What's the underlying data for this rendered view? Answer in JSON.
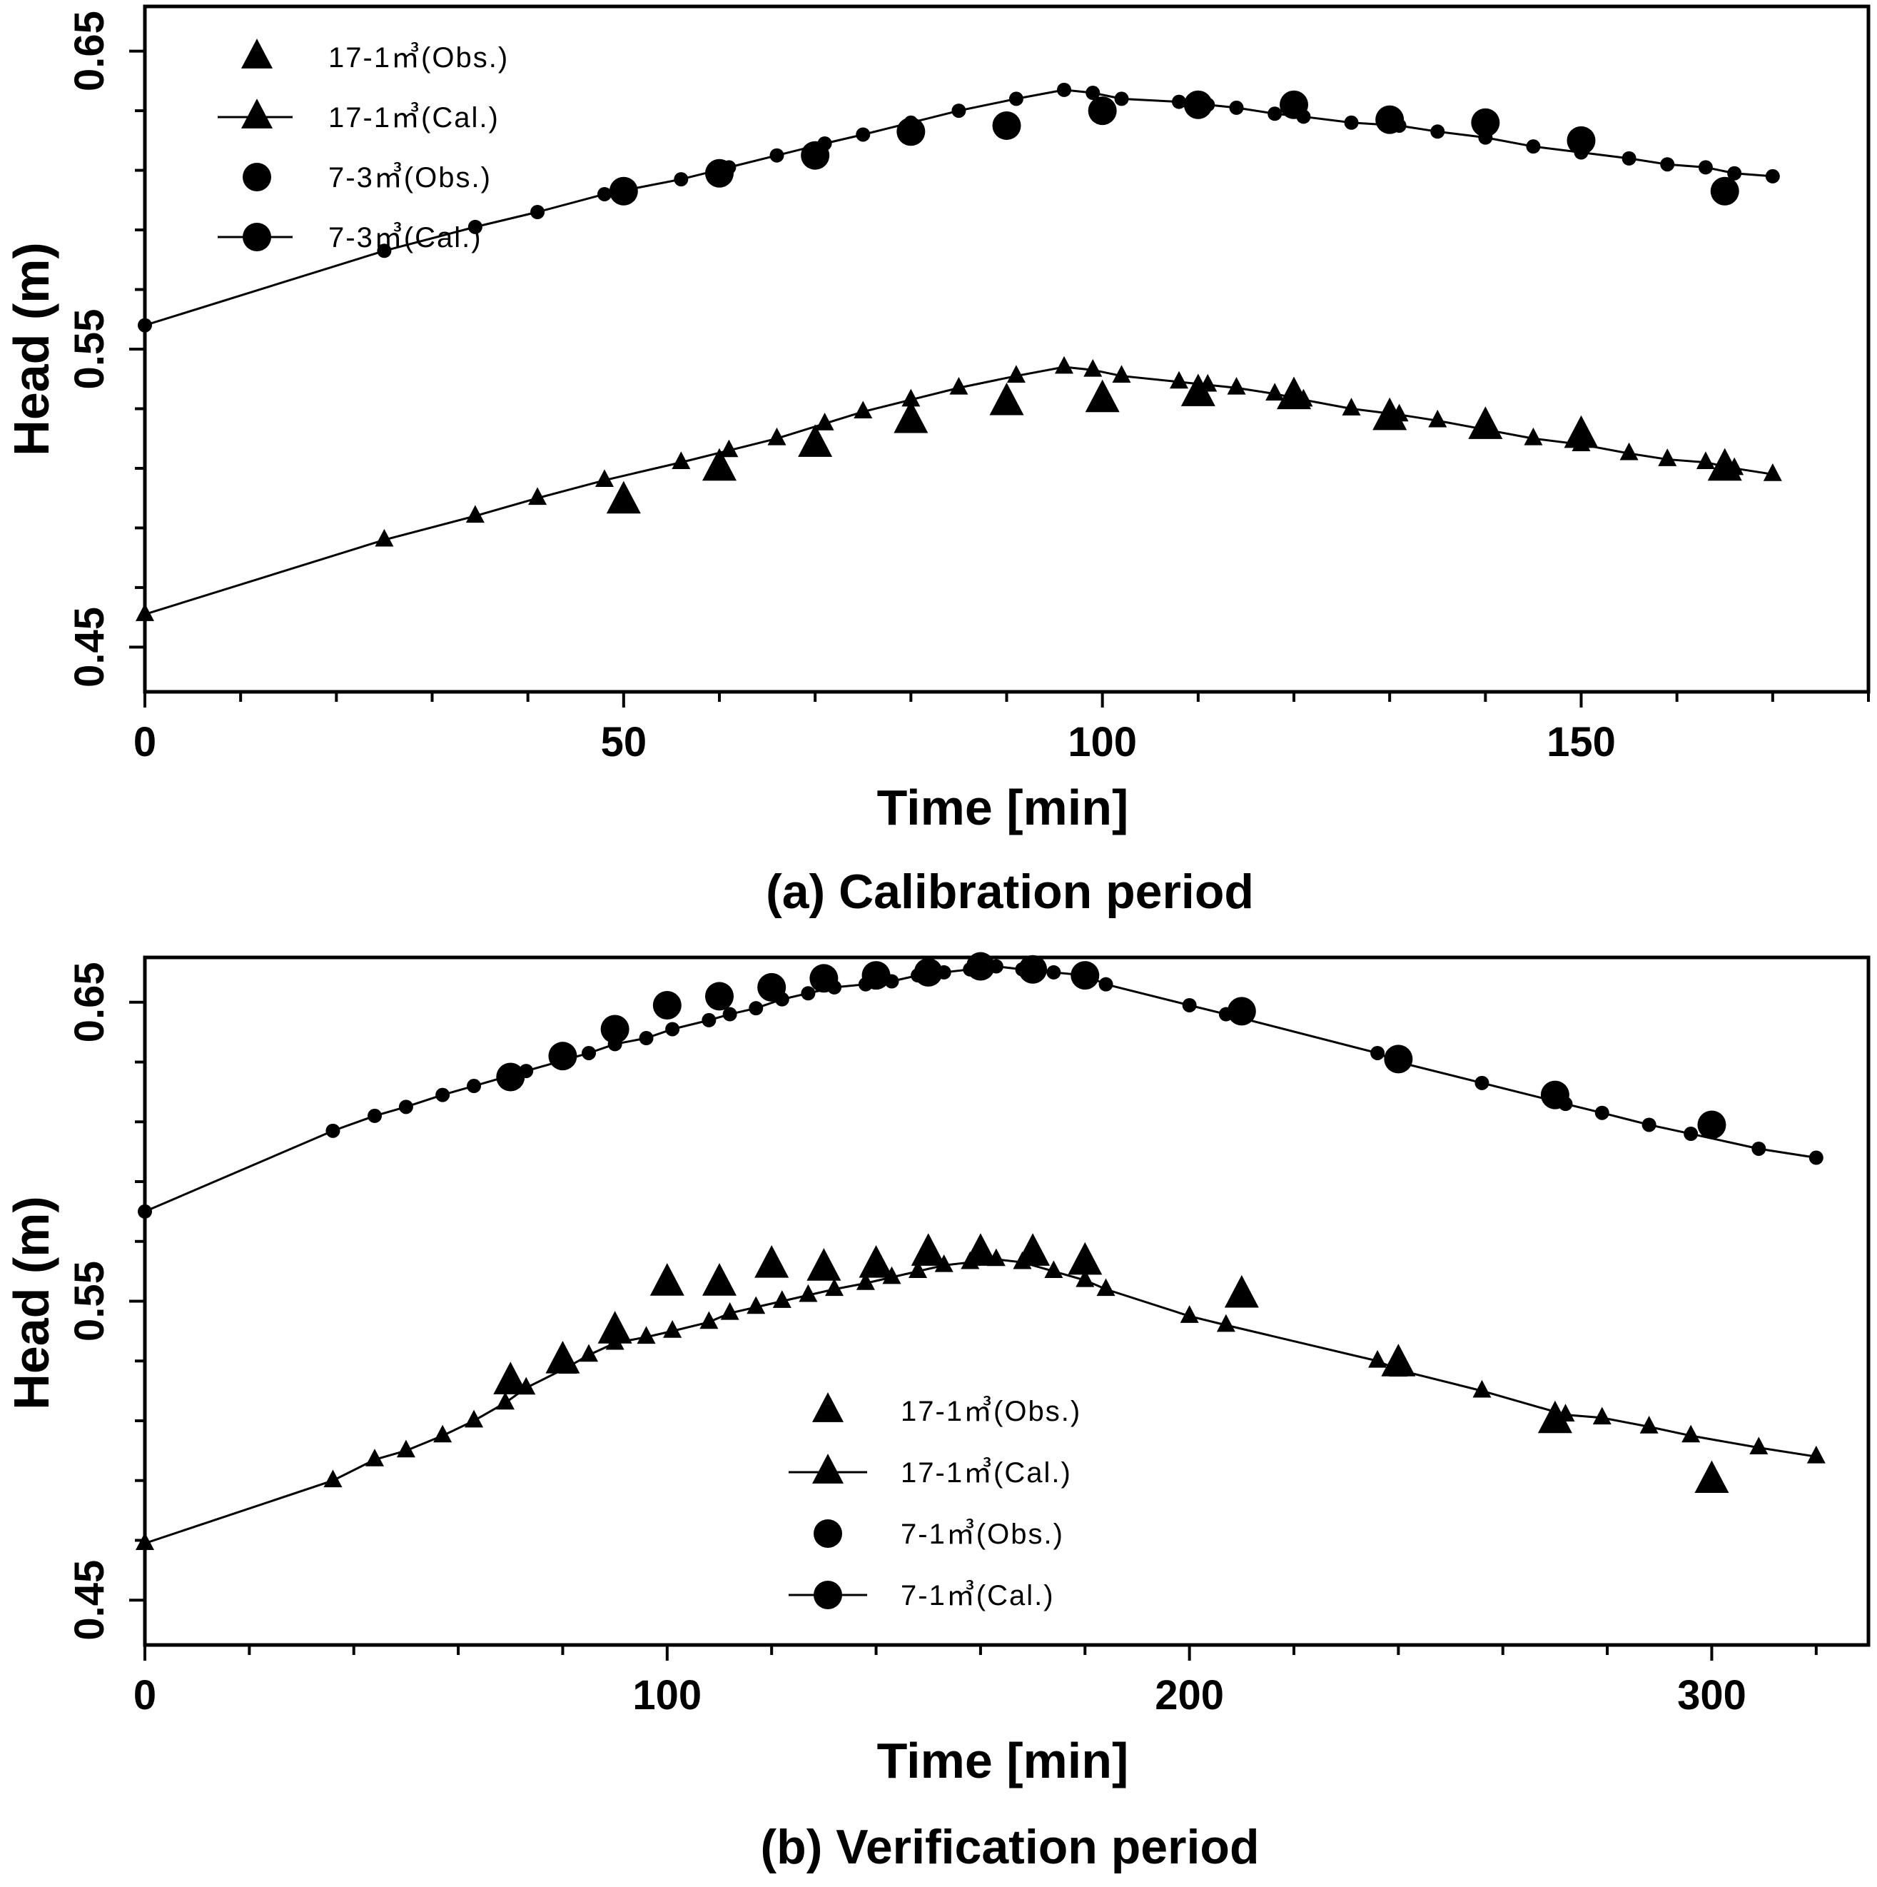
{
  "chart_data": [
    {
      "type": "line",
      "caption": "(a) Calibration period",
      "xlabel": "Time  [min]",
      "ylabel": "Head (m)",
      "xlim": [
        0,
        180
      ],
      "ylim": [
        0.435,
        0.665
      ],
      "xticks": [
        0,
        50,
        100,
        150
      ],
      "yticks": [
        0.45,
        0.55,
        0.65
      ],
      "ytick_labels": [
        "0.45",
        "0.55",
        "0.65"
      ],
      "legend_location": "top-left",
      "series": [
        {
          "name": "17-1㎥(Obs.)",
          "marker": "triangle",
          "style": "markers",
          "x": [
            50,
            60,
            70,
            80,
            90,
            100,
            110,
            120,
            130,
            140,
            150,
            165
          ],
          "y": [
            0.499,
            0.51,
            0.518,
            0.526,
            0.532,
            0.533,
            0.535,
            0.534,
            0.527,
            0.524,
            0.521,
            0.51
          ]
        },
        {
          "name": "17-1㎥(Cal.)",
          "marker": "triangle",
          "style": "line",
          "x": [
            0,
            25,
            34.5,
            41,
            48,
            56,
            61,
            66,
            71,
            75,
            80,
            85,
            91,
            96,
            99,
            102,
            108,
            111,
            114,
            118,
            121,
            126,
            131,
            135,
            140,
            145,
            150,
            155,
            159,
            163,
            166,
            170
          ],
          "y": [
            0.461,
            0.486,
            0.494,
            0.5,
            0.506,
            0.512,
            0.516,
            0.52,
            0.525,
            0.529,
            0.533,
            0.537,
            0.541,
            0.544,
            0.543,
            0.541,
            0.539,
            0.538,
            0.537,
            0.535,
            0.533,
            0.53,
            0.528,
            0.526,
            0.523,
            0.52,
            0.518,
            0.515,
            0.513,
            0.512,
            0.51,
            0.508
          ]
        },
        {
          "name": "7-3㎥(Obs.)",
          "marker": "circle",
          "style": "markers",
          "x": [
            50,
            60,
            70,
            80,
            90,
            100,
            110,
            120,
            130,
            140,
            150,
            165
          ],
          "y": [
            0.603,
            0.609,
            0.615,
            0.623,
            0.625,
            0.63,
            0.632,
            0.632,
            0.627,
            0.626,
            0.62,
            0.603
          ]
        },
        {
          "name": "7-3㎥(Cal.)",
          "marker": "circle",
          "style": "line",
          "x": [
            0,
            25,
            34.5,
            41,
            48,
            56,
            61,
            66,
            71,
            75,
            80,
            85,
            91,
            96,
            99,
            102,
            108,
            111,
            114,
            118,
            121,
            126,
            131,
            135,
            140,
            145,
            150,
            155,
            159,
            163,
            166,
            170
          ],
          "y": [
            0.558,
            0.583,
            0.591,
            0.596,
            0.602,
            0.607,
            0.611,
            0.615,
            0.619,
            0.622,
            0.626,
            0.63,
            0.634,
            0.637,
            0.636,
            0.634,
            0.633,
            0.632,
            0.631,
            0.629,
            0.628,
            0.626,
            0.625,
            0.623,
            0.621,
            0.618,
            0.616,
            0.614,
            0.612,
            0.611,
            0.609,
            0.608
          ]
        }
      ]
    },
    {
      "type": "line",
      "caption": "(b) Verification period",
      "xlabel": "Time  [min]",
      "ylabel": "Head (m)",
      "xlim": [
        0,
        330
      ],
      "ylim": [
        0.435,
        0.665
      ],
      "xticks": [
        0,
        100,
        200,
        300
      ],
      "yticks": [
        0.45,
        0.55,
        0.65
      ],
      "ytick_labels": [
        "0.45",
        "0.55",
        "0.65"
      ],
      "legend_location": "bottom-center",
      "series": [
        {
          "name": "17-1㎥(Obs.)",
          "marker": "triangle",
          "style": "markers",
          "x": [
            70,
            80,
            90,
            100,
            110,
            120,
            130,
            140,
            150,
            160,
            170,
            180,
            210,
            240,
            270,
            300
          ],
          "y": [
            0.523,
            0.53,
            0.54,
            0.556,
            0.556,
            0.562,
            0.561,
            0.562,
            0.566,
            0.566,
            0.566,
            0.563,
            0.552,
            0.529,
            0.51,
            0.49
          ]
        },
        {
          "name": "17-1㎥(Cal.)",
          "marker": "triangle",
          "style": "line",
          "x": [
            0,
            36,
            44,
            50,
            57,
            63,
            69,
            73,
            81,
            85,
            90,
            96,
            101,
            108,
            112,
            117,
            122,
            127,
            132,
            138,
            143,
            148,
            153,
            158,
            163,
            168,
            174,
            180,
            184,
            200,
            207,
            236,
            240,
            256,
            272,
            279,
            288,
            296,
            309,
            320
          ],
          "y": [
            0.469,
            0.49,
            0.497,
            0.5,
            0.505,
            0.51,
            0.516,
            0.521,
            0.528,
            0.532,
            0.536,
            0.538,
            0.54,
            0.543,
            0.546,
            0.548,
            0.55,
            0.552,
            0.554,
            0.556,
            0.558,
            0.56,
            0.562,
            0.563,
            0.564,
            0.563,
            0.56,
            0.557,
            0.554,
            0.545,
            0.542,
            0.53,
            0.527,
            0.52,
            0.512,
            0.511,
            0.508,
            0.505,
            0.501,
            0.498
          ]
        },
        {
          "name": "7-1㎥(Obs.)",
          "marker": "circle",
          "style": "markers",
          "x": [
            70,
            80,
            90,
            100,
            110,
            120,
            130,
            140,
            150,
            160,
            170,
            180,
            210,
            240,
            270,
            300
          ],
          "y": [
            0.625,
            0.632,
            0.641,
            0.649,
            0.652,
            0.655,
            0.658,
            0.659,
            0.66,
            0.662,
            0.661,
            0.659,
            0.647,
            0.631,
            0.619,
            0.609
          ]
        },
        {
          "name": "7-1㎥(Cal.)",
          "marker": "circle",
          "style": "line",
          "x": [
            0,
            36,
            44,
            50,
            57,
            63,
            69,
            73,
            81,
            85,
            90,
            96,
            101,
            108,
            112,
            117,
            122,
            127,
            132,
            138,
            143,
            148,
            153,
            158,
            163,
            168,
            174,
            180,
            184,
            200,
            207,
            236,
            240,
            256,
            272,
            279,
            288,
            296,
            309,
            320
          ],
          "y": [
            0.58,
            0.607,
            0.612,
            0.615,
            0.619,
            0.622,
            0.625,
            0.627,
            0.631,
            0.633,
            0.636,
            0.638,
            0.641,
            0.644,
            0.646,
            0.648,
            0.651,
            0.653,
            0.655,
            0.656,
            0.657,
            0.659,
            0.66,
            0.661,
            0.662,
            0.661,
            0.66,
            0.659,
            0.656,
            0.649,
            0.646,
            0.633,
            0.63,
            0.623,
            0.616,
            0.613,
            0.609,
            0.606,
            0.601,
            0.598
          ]
        }
      ]
    }
  ]
}
